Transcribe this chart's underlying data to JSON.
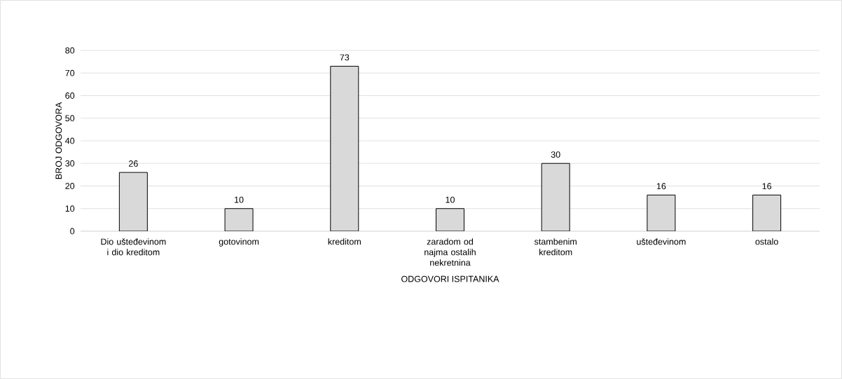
{
  "chart_data": {
    "type": "bar",
    "xlabel": "ODGOVORI ISPITANIKA",
    "ylabel": "BROJ ODGOVORA",
    "categories": [
      "Dio ušteđevinom i dio kreditom",
      "gotovinom",
      "kreditom",
      "zaradom od najma ostalih nekretnina",
      "stambenim kreditom",
      "ušteđevinom",
      "ostalo"
    ],
    "values": [
      26,
      10,
      73,
      10,
      30,
      16,
      16
    ],
    "color": "#d9d9d9",
    "ylim": [
      0,
      80
    ],
    "yticks": [
      0,
      10,
      20,
      30,
      40,
      50,
      60,
      70,
      80
    ],
    "grid": "y",
    "data_labels": true
  }
}
